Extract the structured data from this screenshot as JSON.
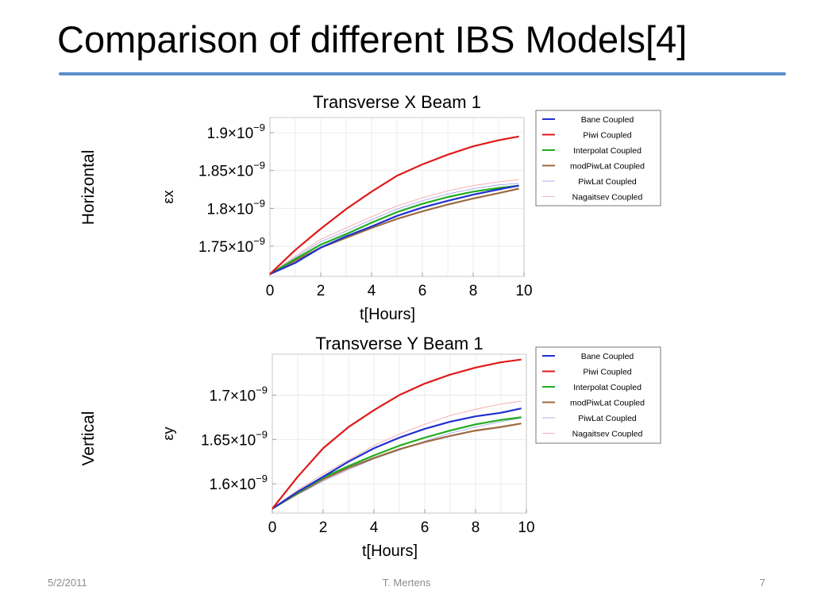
{
  "slide": {
    "title": "Comparison of different IBS Models[4]",
    "footer_date": "5/2/2011",
    "footer_author": "T. Mertens",
    "footer_page": "7"
  },
  "row_labels": [
    "Horizontal",
    "Vertical"
  ],
  "legend_colors": {
    "Bane Coupled": "#1f2fd0",
    "Piwi Coupled": "#e01a1a",
    "Interpolat Coupled": "#1fad1f",
    "modPiwLat Coupled": "#9b6a40",
    "PiwLat Coupled": "#9a9ae6",
    "Nagaitsev Coupled": "#f2a0a8"
  },
  "chart_data": [
    {
      "type": "line",
      "title": "Transverse X Beam 1",
      "xlabel": "t[Hours]",
      "ylabel": "εx",
      "xlim": [
        0,
        10
      ],
      "ylim": [
        1.71e-09,
        1.92e-09
      ],
      "grid": true,
      "legend": "top-right",
      "x_ticks": [
        "0",
        "2",
        "4",
        "6",
        "8",
        "10"
      ],
      "y_ticks": [
        {
          "mantissa": "1.75",
          "exponent": "−9"
        },
        {
          "mantissa": "1.8",
          "exponent": "−9"
        },
        {
          "mantissa": "1.85",
          "exponent": "−9"
        },
        {
          "mantissa": "1.9",
          "exponent": "−9"
        }
      ],
      "x": [
        0,
        1,
        2,
        3,
        4,
        5,
        6,
        7,
        8,
        9,
        9.8
      ],
      "series": [
        {
          "name": "Bane Coupled",
          "values": [
            1.713e-09,
            1.728e-09,
            1.748e-09,
            1.763e-09,
            1.776e-09,
            1.79e-09,
            1.801e-09,
            1.81e-09,
            1.818e-09,
            1.825e-09,
            1.83e-09
          ]
        },
        {
          "name": "Piwi Coupled",
          "values": [
            1.713e-09,
            1.745e-09,
            1.773e-09,
            1.799e-09,
            1.822e-09,
            1.843e-09,
            1.858e-09,
            1.871e-09,
            1.882e-09,
            1.89e-09,
            1.895e-09
          ]
        },
        {
          "name": "Interpolat Coupled",
          "values": [
            1.713e-09,
            1.733e-09,
            1.752e-09,
            1.766e-09,
            1.781e-09,
            1.795e-09,
            1.806e-09,
            1.815e-09,
            1.822e-09,
            1.827e-09,
            1.83e-09
          ]
        },
        {
          "name": "modPiwLat Coupled",
          "values": [
            1.713e-09,
            1.731e-09,
            1.748e-09,
            1.761e-09,
            1.774e-09,
            1.786e-09,
            1.796e-09,
            1.805e-09,
            1.813e-09,
            1.82e-09,
            1.826e-09
          ]
        },
        {
          "name": "PiwLat Coupled",
          "values": [
            1.713e-09,
            1.735e-09,
            1.756e-09,
            1.77e-09,
            1.785e-09,
            1.799e-09,
            1.81e-09,
            1.819e-09,
            1.826e-09,
            1.831e-09,
            1.833e-09
          ]
        },
        {
          "name": "Nagaitsev Coupled",
          "values": [
            1.713e-09,
            1.737e-09,
            1.759e-09,
            1.774e-09,
            1.789e-09,
            1.803e-09,
            1.814e-09,
            1.823e-09,
            1.83e-09,
            1.835e-09,
            1.838e-09
          ]
        }
      ]
    },
    {
      "type": "line",
      "title": "Transverse Y Beam 1",
      "xlabel": "t[Hours]",
      "ylabel": "εy",
      "xlim": [
        0,
        10
      ],
      "ylim": [
        1.567e-09,
        1.746e-09
      ],
      "grid": true,
      "legend": "top-right",
      "x_ticks": [
        "0",
        "2",
        "4",
        "6",
        "8",
        "10"
      ],
      "y_ticks": [
        {
          "mantissa": "1.6",
          "exponent": "−9"
        },
        {
          "mantissa": "1.65",
          "exponent": "−9"
        },
        {
          "mantissa": "1.7",
          "exponent": "−9"
        }
      ],
      "x": [
        0,
        1,
        2,
        3,
        4,
        5,
        6,
        7,
        8,
        9,
        9.8
      ],
      "series": [
        {
          "name": "Bane Coupled",
          "values": [
            1.572e-09,
            1.591e-09,
            1.608e-09,
            1.625e-09,
            1.64e-09,
            1.652e-09,
            1.662e-09,
            1.67e-09,
            1.676e-09,
            1.68e-09,
            1.685e-09
          ]
        },
        {
          "name": "Piwi Coupled",
          "values": [
            1.572e-09,
            1.608e-09,
            1.64e-09,
            1.664e-09,
            1.683e-09,
            1.7e-09,
            1.713e-09,
            1.723e-09,
            1.731e-09,
            1.737e-09,
            1.74e-09
          ]
        },
        {
          "name": "Interpolat Coupled",
          "values": [
            1.572e-09,
            1.59e-09,
            1.607e-09,
            1.62e-09,
            1.632e-09,
            1.643e-09,
            1.652e-09,
            1.66e-09,
            1.667e-09,
            1.672e-09,
            1.675e-09
          ]
        },
        {
          "name": "modPiwLat Coupled",
          "values": [
            1.572e-09,
            1.589e-09,
            1.605e-09,
            1.618e-09,
            1.629e-09,
            1.639e-09,
            1.647e-09,
            1.654e-09,
            1.66e-09,
            1.664e-09,
            1.668e-09
          ]
        },
        {
          "name": "PiwLat Coupled",
          "values": [
            1.572e-09,
            1.588e-09,
            1.603e-09,
            1.616e-09,
            1.628e-09,
            1.638e-09,
            1.648e-09,
            1.657e-09,
            1.664e-09,
            1.67e-09,
            1.674e-09
          ]
        },
        {
          "name": "Nagaitsev Coupled",
          "values": [
            1.572e-09,
            1.593e-09,
            1.611e-09,
            1.627e-09,
            1.643e-09,
            1.656e-09,
            1.667e-09,
            1.677e-09,
            1.684e-09,
            1.69e-09,
            1.693e-09
          ]
        }
      ]
    }
  ]
}
